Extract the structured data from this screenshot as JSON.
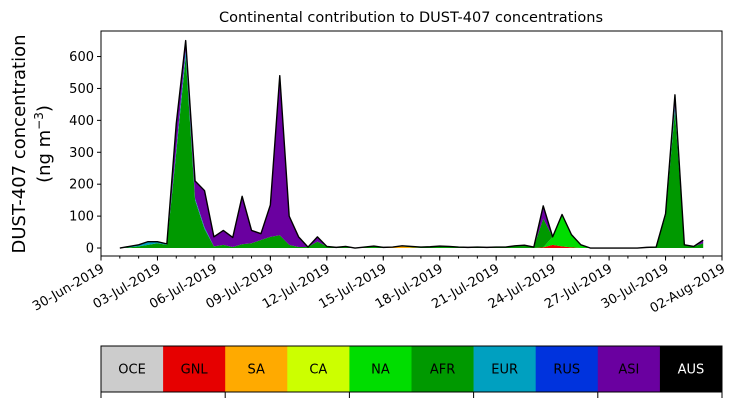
{
  "chart_data": {
    "type": "area",
    "stacked": true,
    "title": "Continental contribution to DUST-407 concentrations",
    "ylabel_line1": "DUST-407 concentration",
    "ylabel_line2_prefix": "(ng m",
    "ylabel_line2_sup": "−3",
    "ylabel_line2_suffix": ")",
    "ylim": [
      -25,
      680
    ],
    "xlim": [
      "2019-06-30",
      "2019-08-02"
    ],
    "yticks": [
      0,
      100,
      200,
      300,
      400,
      500,
      600
    ],
    "xticks": [
      "30-Jun-2019",
      "03-Jul-2019",
      "06-Jul-2019",
      "09-Jul-2019",
      "12-Jul-2019",
      "15-Jul-2019",
      "18-Jul-2019",
      "21-Jul-2019",
      "24-Jul-2019",
      "27-Jul-2019",
      "30-Jul-2019",
      "02-Aug-2019"
    ],
    "dates": [
      "2019-07-01",
      "2019-07-01 12:00",
      "2019-07-02",
      "2019-07-02 12:00",
      "2019-07-03",
      "2019-07-03 12:00",
      "2019-07-04",
      "2019-07-04 12:00",
      "2019-07-05",
      "2019-07-05 12:00",
      "2019-07-06",
      "2019-07-06 12:00",
      "2019-07-07",
      "2019-07-07 12:00",
      "2019-07-08",
      "2019-07-08 12:00",
      "2019-07-09",
      "2019-07-09 12:00",
      "2019-07-10",
      "2019-07-10 12:00",
      "2019-07-11",
      "2019-07-11 12:00",
      "2019-07-12",
      "2019-07-12 12:00",
      "2019-07-13",
      "2019-07-13 12:00",
      "2019-07-14",
      "2019-07-14 12:00",
      "2019-07-15",
      "2019-07-15 12:00",
      "2019-07-16",
      "2019-07-16 12:00",
      "2019-07-17",
      "2019-07-17 12:00",
      "2019-07-18",
      "2019-07-18 12:00",
      "2019-07-19",
      "2019-07-19 12:00",
      "2019-07-20",
      "2019-07-20 12:00",
      "2019-07-21",
      "2019-07-21 12:00",
      "2019-07-22",
      "2019-07-22 12:00",
      "2019-07-23",
      "2019-07-23 12:00",
      "2019-07-24",
      "2019-07-24 12:00",
      "2019-07-25",
      "2019-07-25 12:00",
      "2019-07-26",
      "2019-07-26 12:00",
      "2019-07-27",
      "2019-07-27 12:00",
      "2019-07-28",
      "2019-07-28 12:00",
      "2019-07-29",
      "2019-07-29 12:00",
      "2019-07-30",
      "2019-07-30 12:00",
      "2019-07-31",
      "2019-07-31 12:00",
      "2019-08-01"
    ],
    "series": [
      {
        "name": "OCE",
        "color": "#cccccc",
        "values": [
          0,
          0,
          0,
          0,
          0,
          0,
          0,
          0,
          0,
          0,
          0,
          0,
          0,
          0,
          0,
          0,
          0,
          0,
          0,
          0,
          0,
          0,
          0,
          0,
          0,
          0,
          0,
          0,
          0,
          0,
          0,
          0,
          0,
          0,
          0,
          0,
          0,
          0,
          0,
          0,
          0,
          0,
          0,
          0,
          0,
          0,
          0,
          0,
          0,
          0,
          0,
          0,
          0,
          0,
          0,
          0,
          0,
          0,
          0,
          0,
          0,
          0,
          0
        ]
      },
      {
        "name": "GNL",
        "color": "#e60000",
        "values": [
          0,
          0,
          0,
          0,
          0,
          0,
          0,
          0,
          0,
          0,
          0,
          0,
          0,
          0,
          0,
          0,
          0,
          0,
          0,
          0,
          0,
          0,
          0,
          0,
          0,
          0,
          0,
          0,
          0,
          0,
          0,
          0,
          0,
          0,
          0,
          0,
          0,
          0,
          0,
          0,
          0,
          0,
          0,
          0,
          0,
          2,
          10,
          5,
          2,
          0,
          0,
          0,
          0,
          0,
          0,
          0,
          0,
          0,
          0,
          0,
          0,
          0,
          0
        ]
      },
      {
        "name": "SA",
        "color": "#ffaa00",
        "values": [
          0,
          0,
          0,
          0,
          0,
          0,
          0,
          0,
          0,
          0,
          0,
          0,
          0,
          0,
          0,
          0,
          0,
          0,
          0,
          0,
          0,
          0,
          0,
          0,
          0,
          0,
          0,
          0,
          0,
          3,
          5,
          2,
          0,
          0,
          0,
          0,
          0,
          0,
          0,
          0,
          0,
          0,
          0,
          0,
          0,
          0,
          0,
          0,
          0,
          0,
          0,
          0,
          0,
          0,
          0,
          0,
          0,
          0,
          0,
          0,
          0,
          0,
          0
        ]
      },
      {
        "name": "CA",
        "color": "#ccff00",
        "values": [
          0,
          0,
          0,
          0,
          0,
          0,
          0,
          0,
          0,
          0,
          0,
          0,
          0,
          0,
          0,
          0,
          0,
          0,
          0,
          0,
          0,
          0,
          0,
          0,
          0,
          0,
          0,
          0,
          0,
          0,
          0,
          0,
          0,
          0,
          0,
          0,
          0,
          0,
          0,
          0,
          0,
          0,
          0,
          0,
          0,
          0,
          0,
          0,
          0,
          0,
          0,
          0,
          0,
          0,
          0,
          0,
          0,
          0,
          0,
          0,
          0,
          0,
          0
        ]
      },
      {
        "name": "NA",
        "color": "#00dd00",
        "values": [
          0,
          0,
          0,
          0,
          0,
          0,
          0,
          0,
          0,
          0,
          0,
          0,
          0,
          0,
          0,
          0,
          0,
          0,
          0,
          0,
          0,
          0,
          0,
          0,
          0,
          0,
          0,
          0,
          0,
          0,
          0,
          0,
          0,
          0,
          0,
          0,
          0,
          0,
          0,
          0,
          0,
          0,
          0,
          0,
          0,
          0,
          25,
          100,
          40,
          10,
          0,
          0,
          0,
          0,
          0,
          0,
          0,
          0,
          0,
          0,
          0,
          0,
          0
        ]
      },
      {
        "name": "AFR",
        "color": "#009900",
        "values": [
          0,
          2,
          5,
          10,
          15,
          10,
          300,
          600,
          150,
          60,
          5,
          10,
          3,
          12,
          15,
          25,
          35,
          40,
          10,
          3,
          3,
          20,
          5,
          2,
          5,
          0,
          3,
          6,
          2,
          0,
          2,
          3,
          3,
          4,
          6,
          5,
          3,
          2,
          3,
          2,
          3,
          3,
          7,
          9,
          3,
          90,
          0,
          0,
          0,
          0,
          0,
          0,
          0,
          0,
          0,
          0,
          2,
          3,
          100,
          430,
          10,
          5,
          15
        ]
      },
      {
        "name": "EUR",
        "color": "#00a0c0",
        "values": [
          0,
          3,
          5,
          10,
          5,
          3,
          10,
          20,
          5,
          5,
          0,
          0,
          0,
          0,
          0,
          0,
          0,
          0,
          0,
          0,
          0,
          0,
          0,
          0,
          0,
          0,
          0,
          0,
          0,
          0,
          0,
          0,
          0,
          0,
          0,
          0,
          0,
          0,
          0,
          0,
          0,
          0,
          0,
          0,
          0,
          0,
          0,
          0,
          0,
          0,
          0,
          0,
          0,
          0,
          0,
          0,
          0,
          0,
          5,
          15,
          0,
          0,
          0
        ]
      },
      {
        "name": "RUS",
        "color": "#0033dd",
        "values": [
          0,
          0,
          0,
          0,
          0,
          0,
          0,
          0,
          0,
          0,
          0,
          0,
          0,
          0,
          0,
          0,
          0,
          0,
          0,
          0,
          0,
          0,
          0,
          0,
          0,
          0,
          0,
          0,
          0,
          0,
          0,
          0,
          0,
          0,
          0,
          0,
          0,
          0,
          0,
          0,
          0,
          0,
          0,
          0,
          0,
          0,
          0,
          0,
          0,
          0,
          0,
          0,
          0,
          0,
          0,
          0,
          0,
          0,
          0,
          0,
          0,
          0,
          0
        ]
      },
      {
        "name": "ASI",
        "color": "#6a00a0",
        "values": [
          0,
          0,
          0,
          0,
          0,
          0,
          80,
          30,
          55,
          115,
          30,
          45,
          30,
          150,
          40,
          20,
          100,
          500,
          90,
          32,
          0,
          15,
          0,
          0,
          0,
          0,
          0,
          0,
          0,
          0,
          0,
          0,
          0,
          0,
          0,
          0,
          0,
          0,
          0,
          0,
          0,
          0,
          0,
          0,
          0,
          40,
          0,
          0,
          0,
          0,
          0,
          0,
          0,
          0,
          0,
          0,
          0,
          0,
          2,
          35,
          0,
          0,
          10
        ]
      },
      {
        "name": "AUS",
        "color": "#000000",
        "values": [
          0,
          0,
          0,
          0,
          0,
          0,
          0,
          0,
          0,
          0,
          0,
          0,
          0,
          0,
          0,
          0,
          0,
          0,
          0,
          0,
          0,
          0,
          0,
          0,
          0,
          0,
          0,
          0,
          0,
          0,
          0,
          0,
          0,
          0,
          0,
          0,
          0,
          0,
          0,
          0,
          0,
          0,
          0,
          0,
          0,
          0,
          0,
          0,
          0,
          0,
          0,
          0,
          0,
          0,
          0,
          0,
          0,
          0,
          0,
          0,
          0,
          0,
          0
        ]
      }
    ],
    "legend": {
      "placement": "bottom",
      "entries": [
        {
          "label": "OCE",
          "color": "#cccccc",
          "text_color": "#000000"
        },
        {
          "label": "GNL",
          "color": "#e60000",
          "text_color": "#000000"
        },
        {
          "label": "SA",
          "color": "#ffaa00",
          "text_color": "#000000"
        },
        {
          "label": "CA",
          "color": "#ccff00",
          "text_color": "#000000"
        },
        {
          "label": "NA",
          "color": "#00dd00",
          "text_color": "#000000"
        },
        {
          "label": "AFR",
          "color": "#009900",
          "text_color": "#000000"
        },
        {
          "label": "EUR",
          "color": "#00a0c0",
          "text_color": "#000000"
        },
        {
          "label": "RUS",
          "color": "#0033dd",
          "text_color": "#000000"
        },
        {
          "label": "ASI",
          "color": "#6a00a0",
          "text_color": "#000000"
        },
        {
          "label": "AUS",
          "color": "#000000",
          "text_color": "#ffffff"
        }
      ]
    },
    "grid": false
  }
}
